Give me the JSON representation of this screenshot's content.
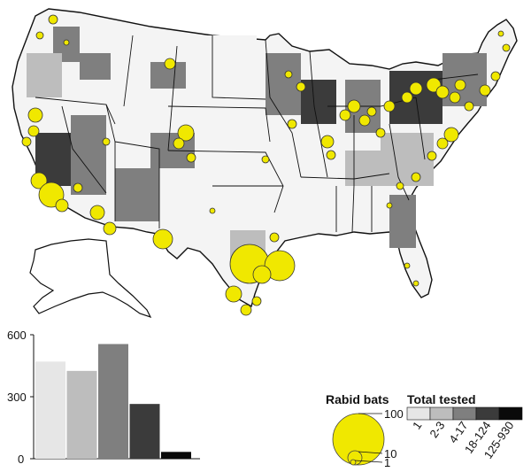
{
  "histogram": {
    "axis_ticks": [
      "600",
      "300",
      "0"
    ],
    "ymax": 600,
    "values": [
      470,
      425,
      555,
      265,
      33
    ],
    "colors": [
      "#e6e6e6",
      "#bdbdbd",
      "#7f7f7f",
      "#3b3b3b",
      "#0a0a0a"
    ]
  },
  "legend": {
    "rabid_bats_title": "Rabid bats",
    "circle_values": [
      "100",
      "10",
      "1"
    ],
    "total_tested_title": "Total tested",
    "classes": [
      "1",
      "2-3",
      "4-17",
      "18-124",
      "125-930"
    ],
    "class_colors": [
      "#e6e6e6",
      "#bdbdbd",
      "#7f7f7f",
      "#3b3b3b",
      "#0a0a0a"
    ]
  },
  "colors": {
    "circle_fill": "#f0e800",
    "outline": "#111111"
  }
}
